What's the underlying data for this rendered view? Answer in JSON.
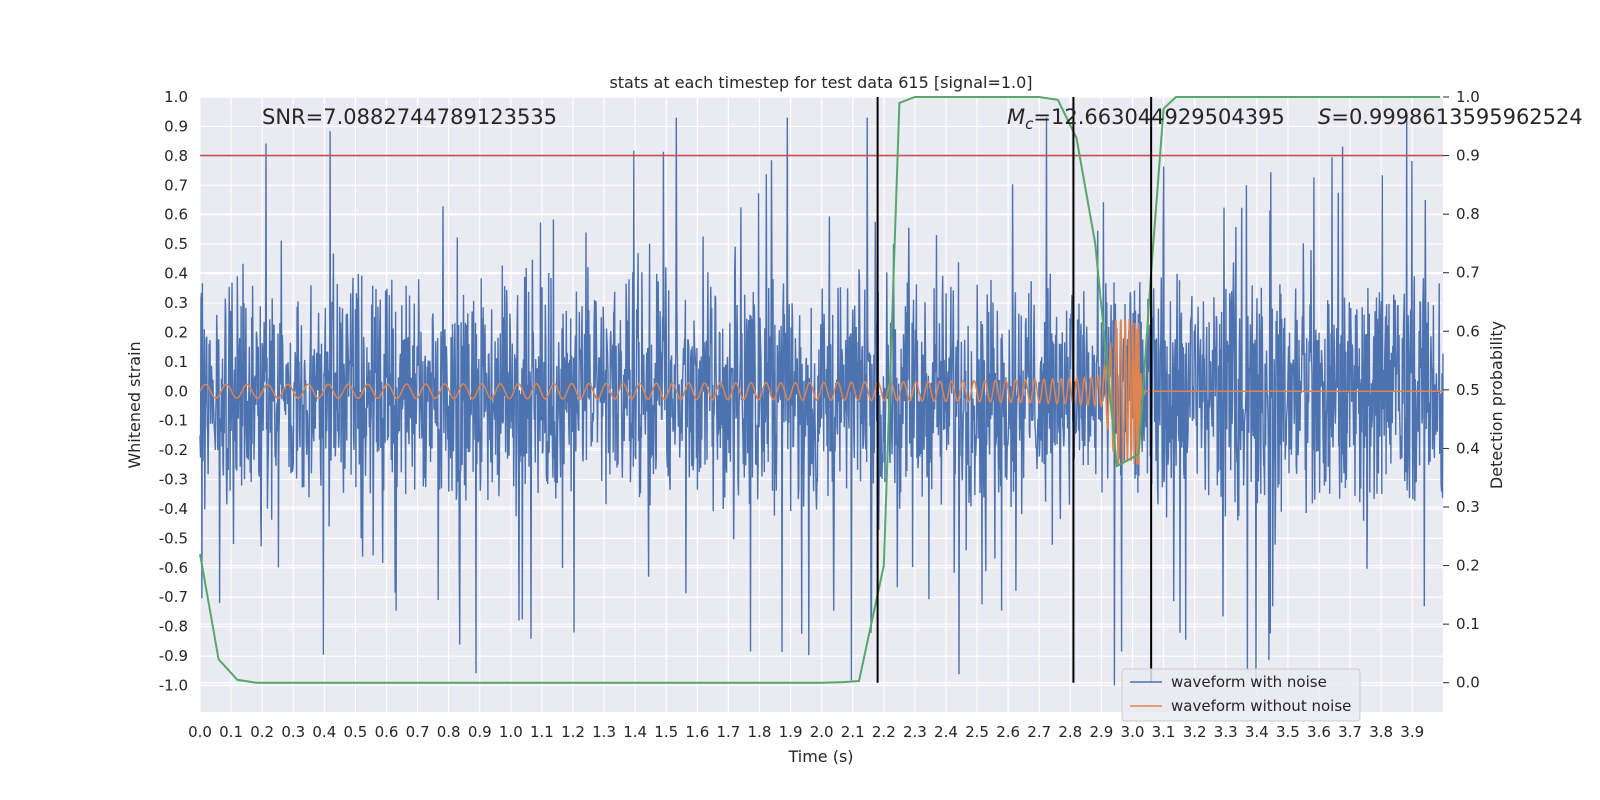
{
  "chart_data": {
    "type": "line",
    "title": "stats at each timestep for test data 615 [signal=1.0]",
    "xlabel": "Time (s)",
    "ylabel": "Whitened strain",
    "y2label": "Detection probability",
    "xlim": [
      0.0,
      3.999
    ],
    "ylim": [
      -1.09,
      1.0
    ],
    "y2lim": [
      -0.05,
      1.0
    ],
    "xticks": [
      "0.0",
      "0.1",
      "0.2",
      "0.3",
      "0.4",
      "0.5",
      "0.6",
      "0.7",
      "0.8",
      "0.9",
      "1.0",
      "1.1",
      "1.2",
      "1.3",
      "1.4",
      "1.5",
      "1.6",
      "1.7",
      "1.8",
      "1.9",
      "2.0",
      "2.1",
      "2.2",
      "2.3",
      "2.4",
      "2.5",
      "2.6",
      "2.7",
      "2.8",
      "2.9",
      "3.0",
      "3.1",
      "3.2",
      "3.3",
      "3.4",
      "3.5",
      "3.6",
      "3.7",
      "3.8",
      "3.9"
    ],
    "yticks": [
      "1.0",
      "0.9",
      "0.8",
      "0.7",
      "0.6",
      "0.5",
      "0.4",
      "0.3",
      "0.2",
      "0.1",
      "0.0",
      "-0.1",
      "-0.2",
      "-0.3",
      "-0.4",
      "-0.5",
      "-0.6",
      "-0.7",
      "-0.8",
      "-0.9",
      "-1.0"
    ],
    "y2ticks": [
      "0.0",
      "0.1",
      "0.2",
      "0.3",
      "0.4",
      "0.5",
      "0.6",
      "0.7",
      "0.8",
      "0.9",
      "1.0"
    ],
    "annotations": {
      "snr": "SNR=7.0882744789123535",
      "mc_symbol": "M",
      "mc_sub": "c",
      "mc_value": "=12.663044929504395",
      "s_symbol": "S",
      "s_value": "=0.9998613595962524"
    },
    "threshold_line": {
      "axis": "y2",
      "value": 0.9,
      "color": "#c44e52"
    },
    "vertical_lines": [
      2.18,
      2.81,
      3.06
    ],
    "series": [
      {
        "name": "waveform with noise",
        "color": "#4c72b0",
        "axis": "y",
        "kind": "noise",
        "amplitude_range": [
          -1.0,
          0.93
        ]
      },
      {
        "name": "waveform without noise",
        "color": "#dd8452",
        "axis": "y",
        "kind": "chirp",
        "merger_time": 3.02,
        "peak_amplitude": 0.25
      },
      {
        "name": "detection probability",
        "color": "#55a868",
        "axis": "y2",
        "legend": false,
        "x": [
          0.0,
          0.06,
          0.12,
          0.18,
          0.5,
          1.0,
          1.5,
          2.0,
          2.07,
          2.12,
          2.2,
          2.25,
          2.3,
          2.5,
          2.7,
          2.76,
          2.82,
          2.88,
          2.95,
          3.02,
          3.06,
          3.1,
          3.14,
          3.5,
          3.99
        ],
        "y": [
          0.22,
          0.04,
          0.005,
          0.0,
          0.0,
          0.0,
          0.0,
          0.0,
          0.001,
          0.003,
          0.2,
          0.99,
          1.0,
          1.0,
          1.0,
          0.995,
          0.93,
          0.75,
          0.37,
          0.39,
          0.7,
          0.98,
          1.0,
          1.0,
          1.0
        ]
      }
    ],
    "legend_position": "bottom-right"
  }
}
